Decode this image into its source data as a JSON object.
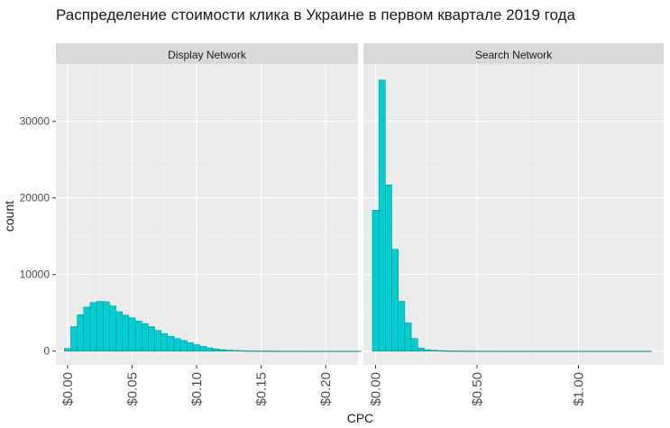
{
  "chart_data": {
    "type": "bar",
    "title": "Распределение стоимости клика в Украине в первом квартале 2019 года",
    "xlabel": "CPC",
    "ylabel": "count",
    "grid": true,
    "fill_color": "#00CED1",
    "border_color": "#00868B",
    "panel_color": "#EBEBEB",
    "strip_color": "#D9D9D9",
    "y_ticks": [
      {
        "value": 0,
        "label": "0"
      },
      {
        "value": 10000,
        "label": "10000"
      },
      {
        "value": 20000,
        "label": "20000"
      },
      {
        "value": 30000,
        "label": "30000"
      }
    ],
    "ylim": [
      -1800,
      37500
    ],
    "panels": [
      {
        "label": "Display Network",
        "xlim": [
          -0.009,
          0.225
        ],
        "x_ticks": [
          {
            "value": 0.0,
            "label": "$0.00"
          },
          {
            "value": 0.05,
            "label": "$0.05"
          },
          {
            "value": 0.1,
            "label": "$0.10"
          },
          {
            "value": 0.15,
            "label": "$0.15"
          },
          {
            "value": 0.2,
            "label": "$0.20"
          }
        ],
        "bin_width": 0.005,
        "bin_start": -0.0025,
        "values": [
          350,
          3200,
          4750,
          5750,
          6350,
          6500,
          6450,
          5900,
          5150,
          4700,
          4350,
          3950,
          3600,
          3200,
          2700,
          2300,
          1950,
          1650,
          1400,
          1100,
          850,
          620,
          430,
          300,
          200,
          140,
          95,
          65,
          45,
          32,
          24,
          18,
          14,
          11,
          9,
          8,
          7,
          6,
          5,
          5,
          4,
          4,
          3,
          3,
          3,
          2
        ]
      },
      {
        "label": "Search Network",
        "xlim": [
          -0.06,
          1.42
        ],
        "x_ticks": [
          {
            "value": 0.0,
            "label": "$0.00"
          },
          {
            "value": 0.5,
            "label": "$0.50"
          },
          {
            "value": 1.0,
            "label": "$1.00"
          }
        ],
        "bin_width": 0.032,
        "bin_start": -0.016,
        "values": [
          18400,
          35400,
          21700,
          13300,
          6500,
          3700,
          1650,
          400,
          200,
          120,
          70,
          45,
          30,
          22,
          16,
          12,
          10,
          8,
          7,
          6,
          5,
          5,
          4,
          4,
          3,
          3,
          3,
          3,
          2,
          2,
          2,
          2,
          2,
          2,
          2,
          1,
          1,
          1,
          1,
          1,
          1,
          1,
          1
        ]
      }
    ]
  }
}
